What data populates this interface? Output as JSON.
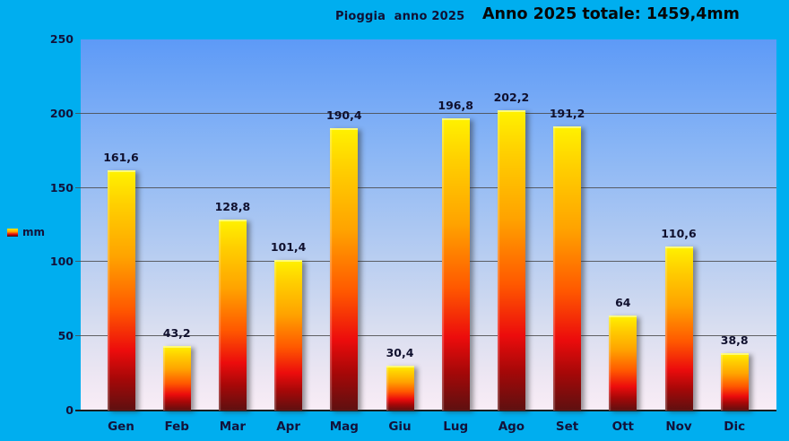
{
  "header": {
    "chart_title": "Pioggia  anno 2025",
    "total_title": "Anno 2025 totale: 1459,4mm"
  },
  "legend": {
    "label": "mm"
  },
  "colors": {
    "canvas_bg": "#00aeef",
    "plot_bg_top": "#5d9af7",
    "plot_bg_bottom": "#f9edf6",
    "bar_top": "#fff200",
    "bar_bottom": "#5e1010",
    "gridline": "#4a4a4a",
    "label_text": "#12123a"
  },
  "chart_data": {
    "type": "bar",
    "title": "Pioggia  anno 2025",
    "subtitle": "Anno 2025 totale: 1459,4mm",
    "total": 1459.4,
    "categories": [
      "Gen",
      "Feb",
      "Mar",
      "Apr",
      "Mag",
      "Giu",
      "Lug",
      "Ago",
      "Set",
      "Ott",
      "Nov",
      "Dic"
    ],
    "values": [
      161.6,
      43.2,
      128.8,
      101.4,
      190.4,
      30.4,
      196.8,
      202.2,
      191.2,
      64,
      110.6,
      38.8
    ],
    "value_labels": [
      "161,6",
      "43,2",
      "128,8",
      "101,4",
      "190,4",
      "30,4",
      "196,8",
      "202,2",
      "191,2",
      "64",
      "110,6",
      "38,8"
    ],
    "series_name": "mm",
    "xlabel": "",
    "ylabel": "mm",
    "ylim": [
      0,
      250
    ],
    "yticks": [
      0,
      50,
      100,
      150,
      200,
      250
    ],
    "grid": true,
    "legend_position": "left"
  }
}
